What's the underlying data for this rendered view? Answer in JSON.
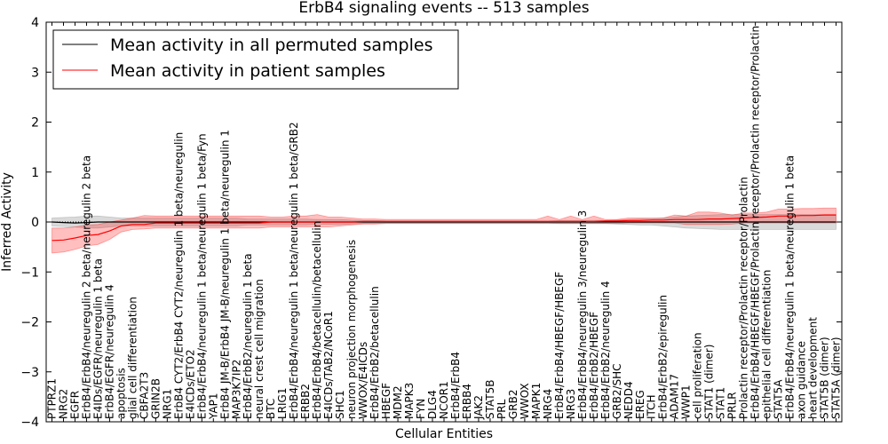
{
  "chart_data": {
    "type": "line",
    "title": "ErbB4 signaling events -- 513 samples",
    "xlabel": "Cellular Entities",
    "ylabel": "Inferred Activity",
    "ylim": [
      -4,
      4
    ],
    "yticks": [
      "4",
      "3",
      "2",
      "1",
      "0",
      "−1",
      "−2",
      "−3",
      "−4"
    ],
    "legend": {
      "placement": "top-left",
      "entries": [
        {
          "label": "Mean activity in all permuted samples",
          "color": "#000000"
        },
        {
          "label": "Mean activity in patient samples",
          "color": "#ff0000"
        }
      ]
    },
    "categories": [
      "PTPRZ1",
      "NRG2",
      "EGFR",
      "ErbB4/ErbB4/neuregulin 2 beta/neuregulin 2 beta",
      "E4IDs/EGFR/neuregulin 1 beta",
      "ErbB4/EGFR/neuregulin 4",
      "apoptosis",
      "glial cell differentiation",
      "CBFA2T3",
      "GRIN2B",
      "NRG1",
      "ErbB4 CYT2/ErbB4 CYT2/neuregulin 1 beta/neuregulin",
      "E4ICDs/ETO2",
      "ErbB4/ErbB4/neuregulin 1 beta/neuregulin 1 beta/Fyn",
      "YAP1",
      "ErbB4 JM-B/ErbB4 JM-B/neuregulin 1 beta/neuregulin 1",
      "MAP3K7IP2",
      "ErbB4/ErbB2/neuregulin 1 beta",
      "neural crest cell migration",
      "BTC",
      "LRIG1",
      "ErbB4/ErbB4/neuregulin 1 beta/neuregulin 1 beta/GRB2",
      "ERBB2",
      "ErbB4/ErbB4/betacellulin/betacellulin",
      "E4ICDs/TAB2/NCoR1",
      "SHC1",
      "neuron projection morphogenesis",
      "WWOX/E4ICDs",
      "ErbB4/ErbB2/betacellulin",
      "HBEGF",
      "MDM2",
      "MAPK3",
      "FYN",
      "DLG4",
      "NCOR1",
      "ErbB4/ErbB4",
      "ERBB4",
      "JAK2",
      "STAT5B",
      "PRL",
      "GRB2",
      "WWOX",
      "MAPK1",
      "NRG4",
      "ErbB4/ErbB4/HBEGF/HBEGF",
      "NRG3",
      "ErbB4/ErbB4/neuregulin 3/neuregulin 3",
      "ErbB4/ErbB2/HBEGF",
      "ErbB4/ErbB2/neuregulin 4",
      "GRB2/SHC",
      "NEDD4",
      "EREG",
      "ITCH",
      "ErbB4/ErbB2/epiregulin",
      "ADAM17",
      "WWP1",
      "cell proliferation",
      "STAT1 (dimer)",
      "STAT1",
      "PRLR",
      "Prolactin receptor/Prolactin receptor/Prolactin",
      "ErbB4/ErbB4/HBEGF/HBEGF/Prolactin receptor/Prolactin receptor/Prolactin",
      "epithelial cell differentiation",
      "STAT5A",
      "ErbB4/ErbB4/neuregulin 1 beta/neuregulin 1 beta",
      "axon guidance",
      "heart development",
      "STAT5B (dimer)",
      "STAT5A (dimer)"
    ],
    "series": [
      {
        "name": "Mean activity in all permuted samples",
        "color": "#000000",
        "values": [
          0.0,
          -0.01,
          -0.02,
          -0.01,
          0.0,
          0.0,
          0.0,
          0.0,
          0.0,
          0.0,
          0.0,
          0.0,
          0.0,
          0.0,
          0.0,
          0.0,
          0.0,
          0.0,
          0.0,
          0.0,
          0.0,
          0.0,
          0.0,
          0.0,
          0.0,
          0.0,
          0.0,
          0.0,
          0.0,
          0.0,
          0.0,
          0.0,
          0.0,
          0.0,
          0.0,
          0.0,
          0.0,
          0.0,
          0.0,
          0.0,
          0.0,
          0.0,
          0.0,
          0.0,
          0.0,
          0.0,
          0.0,
          0.0,
          0.0,
          0.0,
          0.0,
          0.0,
          0.0,
          0.0,
          0.0,
          0.0,
          0.0,
          0.0,
          0.0,
          0.0,
          0.0,
          0.0,
          0.0,
          0.0,
          0.0,
          0.0,
          0.0,
          0.0,
          0.0
        ],
        "lower": [
          -0.08,
          -0.09,
          -0.1,
          -0.12,
          -0.12,
          -0.1,
          -0.08,
          -0.08,
          -0.08,
          -0.08,
          -0.08,
          -0.08,
          -0.08,
          -0.08,
          -0.08,
          -0.08,
          -0.08,
          -0.06,
          -0.06,
          -0.06,
          -0.06,
          -0.06,
          -0.06,
          -0.05,
          -0.05,
          -0.05,
          -0.04,
          -0.03,
          -0.03,
          -0.02,
          -0.02,
          -0.02,
          -0.02,
          -0.02,
          -0.02,
          -0.02,
          -0.02,
          -0.02,
          -0.02,
          -0.02,
          -0.02,
          -0.02,
          -0.02,
          -0.02,
          -0.03,
          -0.03,
          -0.03,
          -0.03,
          -0.03,
          -0.04,
          -0.05,
          -0.06,
          -0.06,
          -0.08,
          -0.1,
          -0.12,
          -0.13,
          -0.14,
          -0.15,
          -0.15,
          -0.15,
          -0.15,
          -0.15,
          -0.15,
          -0.15,
          -0.15,
          -0.15,
          -0.15,
          -0.15
        ],
        "upper": [
          0.08,
          0.09,
          0.1,
          0.12,
          0.12,
          0.1,
          0.08,
          0.08,
          0.08,
          0.08,
          0.08,
          0.08,
          0.08,
          0.08,
          0.08,
          0.08,
          0.08,
          0.06,
          0.06,
          0.06,
          0.06,
          0.06,
          0.06,
          0.05,
          0.05,
          0.05,
          0.04,
          0.03,
          0.03,
          0.02,
          0.02,
          0.02,
          0.02,
          0.02,
          0.02,
          0.02,
          0.02,
          0.02,
          0.02,
          0.02,
          0.02,
          0.02,
          0.02,
          0.02,
          0.03,
          0.03,
          0.03,
          0.03,
          0.03,
          0.04,
          0.05,
          0.06,
          0.06,
          0.08,
          0.1,
          0.12,
          0.13,
          0.14,
          0.15,
          0.15,
          0.15,
          0.15,
          0.15,
          0.15,
          0.15,
          0.15,
          0.15,
          0.15,
          0.15
        ]
      },
      {
        "name": "Mean activity in patient samples",
        "color": "#ff0000",
        "values": [
          -0.37,
          -0.36,
          -0.32,
          -0.27,
          -0.25,
          -0.18,
          -0.08,
          -0.05,
          -0.05,
          -0.02,
          -0.02,
          -0.02,
          -0.02,
          -0.02,
          -0.02,
          -0.02,
          -0.02,
          -0.02,
          -0.02,
          0.0,
          0.0,
          0.0,
          0.0,
          0.0,
          0.0,
          0.0,
          0.0,
          0.01,
          0.01,
          0.01,
          0.01,
          0.01,
          0.01,
          0.01,
          0.01,
          0.01,
          0.01,
          0.01,
          0.01,
          0.01,
          0.01,
          0.01,
          0.01,
          0.01,
          0.01,
          0.01,
          0.01,
          0.01,
          0.02,
          0.02,
          0.03,
          0.03,
          0.04,
          0.04,
          0.05,
          0.05,
          0.05,
          0.06,
          0.06,
          0.07,
          0.08,
          0.09,
          0.1,
          0.12,
          0.12,
          0.13,
          0.13,
          0.14,
          0.14
        ],
        "lower": [
          -0.62,
          -0.6,
          -0.55,
          -0.48,
          -0.45,
          -0.35,
          -0.2,
          -0.15,
          -0.14,
          -0.12,
          -0.12,
          -0.12,
          -0.12,
          -0.12,
          -0.12,
          -0.12,
          -0.12,
          -0.12,
          -0.12,
          -0.1,
          -0.1,
          -0.1,
          -0.1,
          -0.1,
          -0.1,
          -0.08,
          -0.06,
          -0.04,
          -0.04,
          -0.03,
          -0.03,
          -0.03,
          -0.03,
          -0.03,
          -0.03,
          -0.03,
          -0.03,
          -0.03,
          -0.03,
          -0.03,
          -0.03,
          -0.03,
          -0.03,
          -0.03,
          -0.03,
          -0.03,
          -0.03,
          -0.03,
          -0.03,
          -0.03,
          -0.02,
          -0.02,
          -0.02,
          -0.02,
          -0.02,
          -0.05,
          -0.05,
          -0.05,
          -0.05,
          -0.04,
          -0.02,
          -0.02,
          -0.02,
          -0.02,
          -0.02,
          -0.02,
          -0.02,
          -0.02,
          -0.02
        ],
        "upper": [
          -0.12,
          -0.12,
          -0.1,
          -0.06,
          -0.05,
          0.0,
          0.04,
          0.08,
          0.13,
          0.12,
          0.12,
          0.12,
          0.12,
          0.12,
          0.12,
          0.12,
          0.12,
          0.12,
          0.12,
          0.1,
          0.1,
          0.12,
          0.12,
          0.15,
          0.1,
          0.1,
          0.08,
          0.06,
          0.06,
          0.05,
          0.05,
          0.05,
          0.05,
          0.05,
          0.05,
          0.05,
          0.05,
          0.05,
          0.05,
          0.05,
          0.05,
          0.05,
          0.05,
          0.12,
          0.05,
          0.12,
          0.05,
          0.12,
          0.05,
          0.05,
          0.08,
          0.08,
          0.08,
          0.08,
          0.14,
          0.12,
          0.2,
          0.2,
          0.18,
          0.14,
          0.18,
          0.18,
          0.2,
          0.26,
          0.26,
          0.27,
          0.27,
          0.28,
          0.28
        ]
      }
    ]
  }
}
